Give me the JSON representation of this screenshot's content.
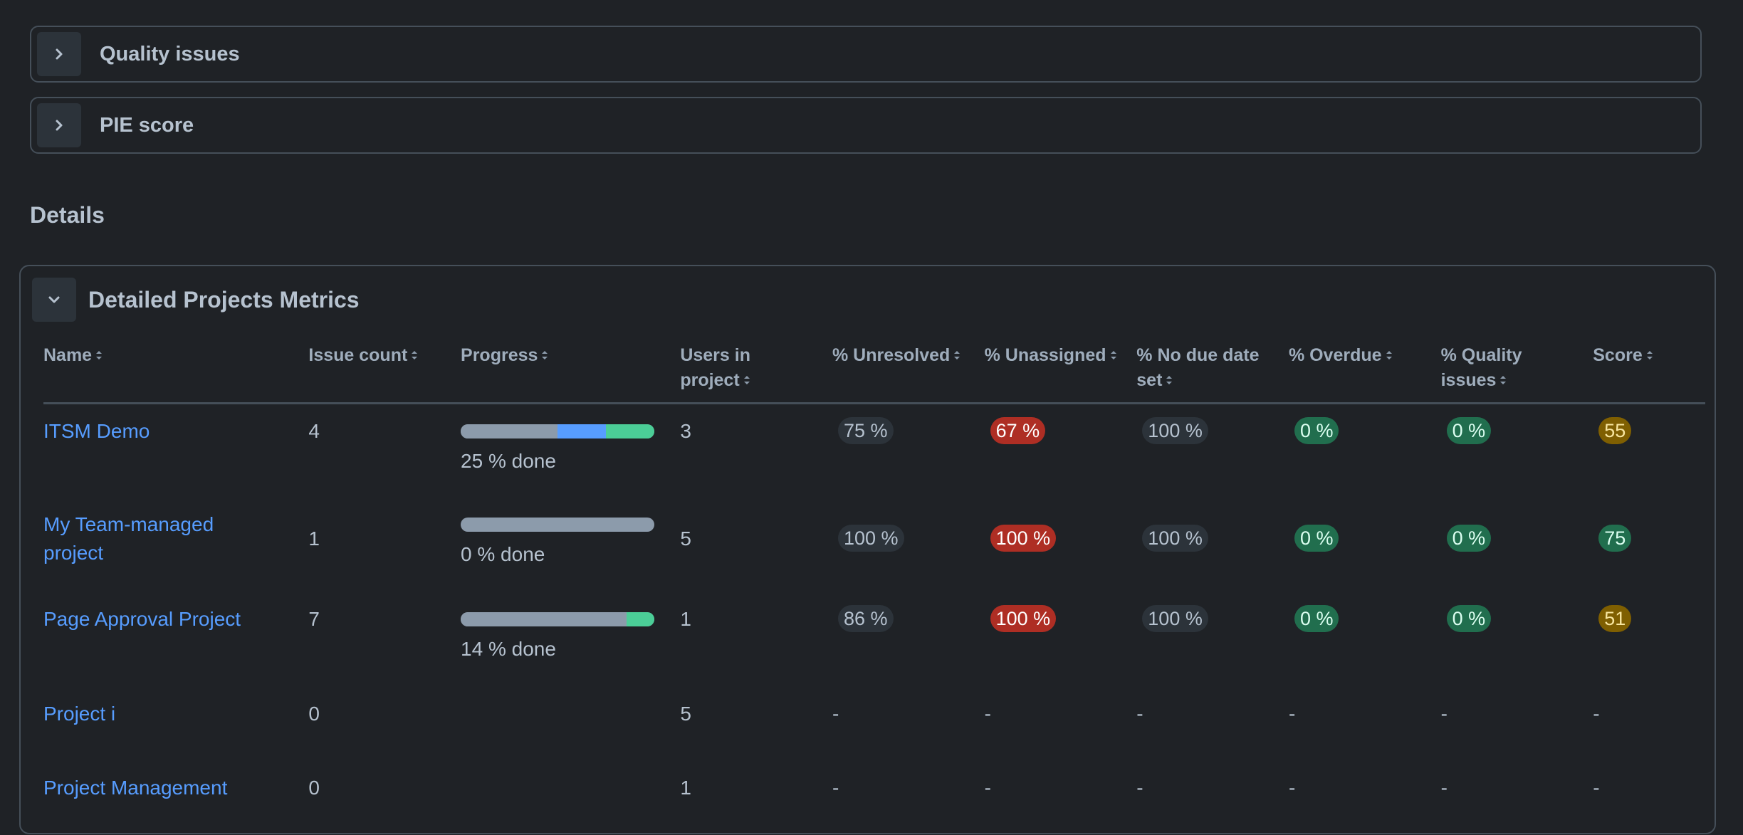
{
  "sections": {
    "quality_issues": "Quality issues",
    "pie_score": "PIE score"
  },
  "details_heading": "Details",
  "panel_title": "Detailed Projects Metrics",
  "columns": {
    "name": "Name",
    "issue_count": "Issue count",
    "progress": "Progress",
    "users_line1": "Users in",
    "users_line2": "project",
    "unresolved": "% Unresolved",
    "unassigned": "% Unassigned",
    "no_due_line1": "% No due date",
    "no_due_line2": "set",
    "overdue": "% Overdue",
    "quality_line1": "% Quality",
    "quality_line2": "issues",
    "score": "Score"
  },
  "rows": [
    {
      "name_line1": "ITSM Demo",
      "name_line2": "",
      "issue_count": "4",
      "progress": {
        "grey": 0.5,
        "blue": 0.25,
        "green": 0.25
      },
      "progress_text": "25 % done",
      "users": "3",
      "unresolved": "75 %",
      "unassigned": "67 %",
      "no_due": "100 %",
      "overdue": "0 %",
      "quality": "0 %",
      "score": "55"
    },
    {
      "name_line1": "My Team-managed",
      "name_line2": "project",
      "issue_count": "1",
      "progress": {
        "grey": 1.0,
        "blue": 0,
        "green": 0
      },
      "progress_text": "0 % done",
      "users": "5",
      "unresolved": "100 %",
      "unassigned": "100 %",
      "no_due": "100 %",
      "overdue": "0 %",
      "quality": "0 %",
      "score": "75"
    },
    {
      "name_line1": "Page Approval Project",
      "name_line2": "",
      "issue_count": "7",
      "progress": {
        "grey": 0.857,
        "blue": 0,
        "green": 0.143
      },
      "progress_text": "14 % done",
      "users": "1",
      "unresolved": "86 %",
      "unassigned": "100 %",
      "no_due": "100 %",
      "overdue": "0 %",
      "quality": "0 %",
      "score": "51"
    },
    {
      "name_line1": "Project i",
      "issue_count": "0",
      "users": "5",
      "dash": "-"
    },
    {
      "name_line1": "Project Management",
      "issue_count": "0",
      "users": "1",
      "dash": "-"
    }
  ],
  "colors": {
    "background": "#1f2226",
    "link": "#579dff",
    "progress_grey": "#8c9bab",
    "progress_blue": "#579dff",
    "progress_green": "#4bce97",
    "badge_red": "#ae2e24",
    "badge_green": "#216e4e",
    "badge_yellow": "#7f5f01"
  },
  "icons": {
    "collapsed": "chevron-right-icon",
    "expanded": "chevron-down-icon",
    "sort": "sort-icon"
  }
}
